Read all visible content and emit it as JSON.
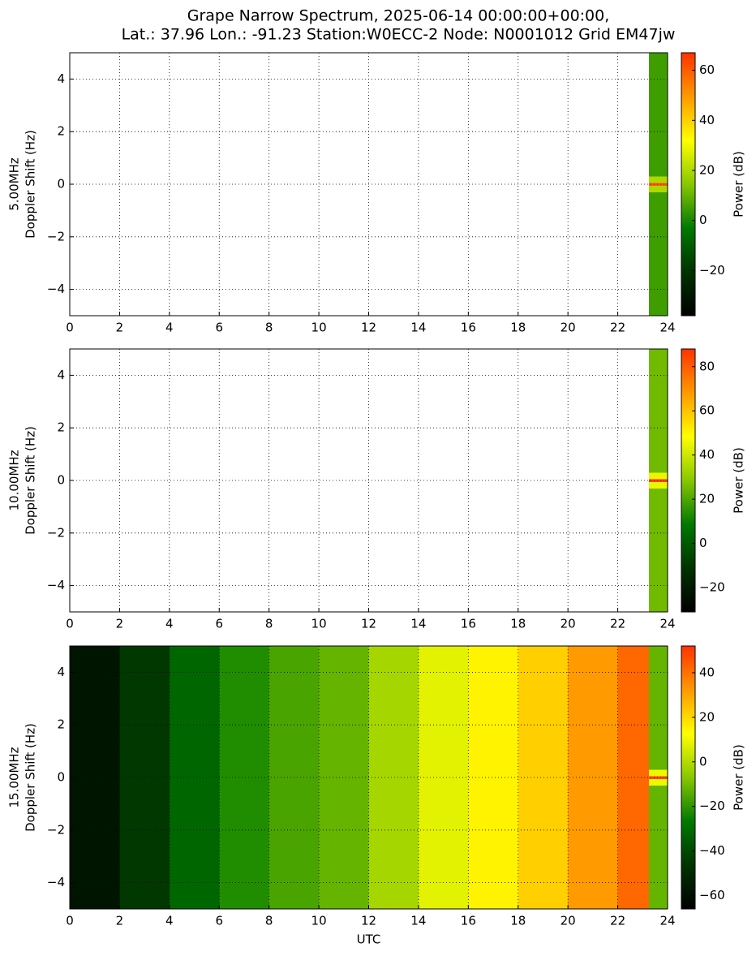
{
  "title": [
    "Grape Narrow Spectrum, 2025-06-14 00:00:00+00:00,",
    "Lat.: 37.96 Lon.: -91.23 Station:W0ECC-2 Node: N0001012 Grid EM47jw"
  ],
  "chart_data": [
    {
      "type": "heatmap",
      "ylabel": [
        "5.00MHz",
        "Doppler Shift (Hz)"
      ],
      "colorbar_label": "Power (dB)",
      "xlim": [
        0,
        24
      ],
      "xticks": [
        0,
        2,
        4,
        6,
        8,
        10,
        12,
        14,
        16,
        18,
        20,
        22,
        24
      ],
      "ylim": [
        -5,
        5
      ],
      "yticks": [
        {
          "value": -4,
          "label": "−4"
        },
        {
          "value": -2,
          "label": "−2"
        },
        0,
        2,
        4
      ],
      "grid": true,
      "x": [
        0,
        23.25,
        24
      ],
      "y": [
        -5,
        -0.3,
        -0.05,
        0.05,
        0.3,
        5
      ],
      "z": [
        [
          null,
          5
        ],
        [
          null,
          20
        ],
        [
          null,
          60
        ],
        [
          null,
          20
        ],
        [
          null,
          5
        ]
      ],
      "clim": [
        -38,
        67
      ],
      "cticks": [
        {
          "value": -20,
          "label": "−20"
        },
        0,
        20,
        40,
        60
      ],
      "colormap": [
        "#000000",
        "#003300",
        "#007a00",
        "#88c800",
        "#ffff00",
        "#ff9900",
        "#ff3300"
      ]
    },
    {
      "type": "heatmap",
      "ylabel": [
        "10.00MHz",
        "Doppler Shift (Hz)"
      ],
      "colorbar_label": "Power (dB)",
      "xlim": [
        0,
        24
      ],
      "xticks": [
        0,
        2,
        4,
        6,
        8,
        10,
        12,
        14,
        16,
        18,
        20,
        22,
        24
      ],
      "ylim": [
        -5,
        5
      ],
      "yticks": [
        {
          "value": -4,
          "label": "−4"
        },
        {
          "value": -2,
          "label": "−2"
        },
        0,
        2,
        4
      ],
      "grid": true,
      "x": [
        0,
        23.25,
        24
      ],
      "y": [
        -5,
        -0.3,
        -0.05,
        0.05,
        0.3,
        5
      ],
      "z": [
        [
          null,
          25
        ],
        [
          null,
          45
        ],
        [
          null,
          85
        ],
        [
          null,
          45
        ],
        [
          null,
          25
        ]
      ],
      "clim": [
        -31,
        88
      ],
      "cticks": [
        {
          "value": -20,
          "label": "−20"
        },
        0,
        20,
        40,
        60,
        80
      ],
      "colormap": [
        "#000000",
        "#003300",
        "#007a00",
        "#88c800",
        "#ffff00",
        "#ff9900",
        "#ff3300"
      ]
    },
    {
      "type": "heatmap",
      "ylabel": [
        "15.00MHz",
        "Doppler Shift (Hz)"
      ],
      "colorbar_label": "Power (dB)",
      "xlabel": "UTC",
      "xlim": [
        0,
        24
      ],
      "xticks": [
        0,
        2,
        4,
        6,
        8,
        10,
        12,
        14,
        16,
        18,
        20,
        22,
        24
      ],
      "ylim": [
        -5,
        5
      ],
      "yticks": [
        {
          "value": -4,
          "label": "−4"
        },
        {
          "value": -2,
          "label": "−2"
        },
        0,
        2,
        4
      ],
      "grid": true,
      "x": [
        0,
        2,
        4,
        6,
        8,
        10,
        12,
        14,
        16,
        18,
        20,
        22,
        23.25,
        24
      ],
      "y": [
        -5,
        -0.3,
        -0.05,
        0.05,
        0.3,
        5
      ],
      "z": [
        [
          -58,
          -45,
          -32,
          -22,
          -16,
          -12,
          -2,
          8,
          15,
          22,
          32,
          42,
          -12
        ],
        [
          -58,
          -45,
          -32,
          -22,
          -16,
          -12,
          -2,
          8,
          15,
          22,
          32,
          42,
          10
        ],
        [
          -58,
          -45,
          -32,
          -22,
          -16,
          -12,
          -2,
          8,
          15,
          22,
          32,
          42,
          48
        ],
        [
          -58,
          -45,
          -32,
          -22,
          -16,
          -12,
          -2,
          8,
          15,
          22,
          32,
          42,
          10
        ],
        [
          -58,
          -45,
          -32,
          -22,
          -16,
          -12,
          -2,
          8,
          15,
          22,
          32,
          42,
          -12
        ]
      ],
      "clim": [
        -66,
        52
      ],
      "cticks": [
        {
          "value": -60,
          "label": "−60"
        },
        {
          "value": -40,
          "label": "−40"
        },
        {
          "value": -20,
          "label": "−20"
        },
        0,
        20,
        40
      ],
      "colormap": [
        "#000000",
        "#003300",
        "#007a00",
        "#88c800",
        "#ffff00",
        "#ff9900",
        "#ff3300"
      ]
    }
  ]
}
